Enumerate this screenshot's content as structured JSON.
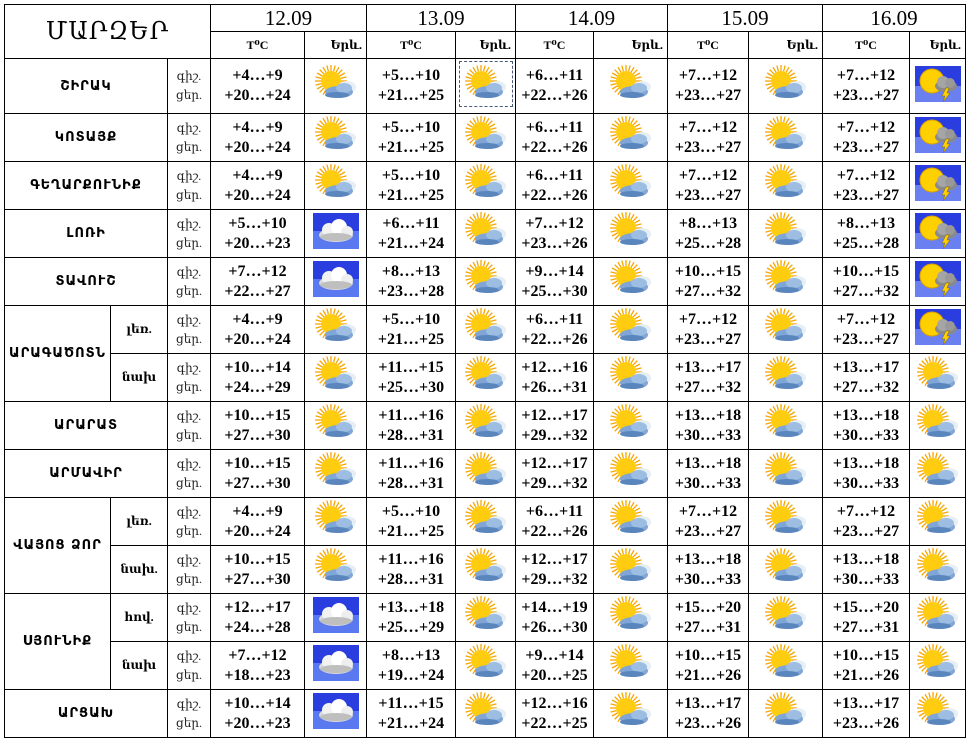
{
  "header": {
    "title": "ՄԱՐԶԵՐ",
    "dates": [
      "12.09",
      "13.09",
      "14.09",
      "15.09",
      "16.09"
    ],
    "temp_label": "T⁰C",
    "city_label": "Երև."
  },
  "labels": {
    "night": "գիշ.",
    "day": "ցեր."
  },
  "icon_types": {
    "pc": "partly-cloudy",
    "cl": "cloudy",
    "th": "thunderstorm"
  },
  "colors": {
    "sun": "#ffc400",
    "sky": "#2233dd",
    "cloud": "#7fa6d6",
    "border": "#000000"
  },
  "regions": [
    {
      "name": "ՇԻՐԱԿ",
      "rows": [
        {
          "sub": "",
          "days": [
            [
              "+4…+9",
              "+20…+24",
              "pc"
            ],
            [
              "+5…+10",
              "+21…+25",
              "pc"
            ],
            [
              "+6…+11",
              "+22…+26",
              "pc"
            ],
            [
              "+7…+12",
              "+23…+27",
              "pc"
            ],
            [
              "+7…+12",
              "+23…+27",
              "th"
            ]
          ]
        }
      ]
    },
    {
      "name": "ԿՈՏԱՅՔ",
      "rows": [
        {
          "sub": "",
          "days": [
            [
              "+4…+9",
              "+20…+24",
              "pc"
            ],
            [
              "+5…+10",
              "+21…+25",
              "pc"
            ],
            [
              "+6…+11",
              "+22…+26",
              "pc"
            ],
            [
              "+7…+12",
              "+23…+27",
              "pc"
            ],
            [
              "+7…+12",
              "+23…+27",
              "th"
            ]
          ]
        }
      ]
    },
    {
      "name": "ԳԵՂԱՐՔՈՒՆԻՔ",
      "rows": [
        {
          "sub": "",
          "days": [
            [
              "+4…+9",
              "+20…+24",
              "pc"
            ],
            [
              "+5…+10",
              "+21…+25",
              "pc"
            ],
            [
              "+6…+11",
              "+22…+26",
              "pc"
            ],
            [
              "+7…+12",
              "+23…+27",
              "pc"
            ],
            [
              "+7…+12",
              "+23…+27",
              "th"
            ]
          ]
        }
      ]
    },
    {
      "name": "ԼՈՌԻ",
      "rows": [
        {
          "sub": "",
          "days": [
            [
              "+5…+10",
              "+20…+23",
              "cl"
            ],
            [
              "+6…+11",
              "+21…+24",
              "pc"
            ],
            [
              "+7…+12",
              "+23…+26",
              "pc"
            ],
            [
              "+8…+13",
              "+25…+28",
              "pc"
            ],
            [
              "+8…+13",
              "+25…+28",
              "th"
            ]
          ]
        }
      ]
    },
    {
      "name": "ՏԱՎՈՒՇ",
      "rows": [
        {
          "sub": "",
          "days": [
            [
              "+7…+12",
              "+22…+27",
              "cl"
            ],
            [
              "+8…+13",
              "+23…+28",
              "pc"
            ],
            [
              "+9…+14",
              "+25…+30",
              "pc"
            ],
            [
              "+10…+15",
              "+27…+32",
              "pc"
            ],
            [
              "+10…+15",
              "+27…+32",
              "th"
            ]
          ]
        }
      ]
    },
    {
      "name": "ԱՐԱԳԱԾՈՏՆ",
      "rows": [
        {
          "sub": "լեռ.",
          "days": [
            [
              "+4…+9",
              "+20…+24",
              "pc"
            ],
            [
              "+5…+10",
              "+21…+25",
              "pc"
            ],
            [
              "+6…+11",
              "+22…+26",
              "pc"
            ],
            [
              "+7…+12",
              "+23…+27",
              "pc"
            ],
            [
              "+7…+12",
              "+23…+27",
              "th"
            ]
          ]
        },
        {
          "sub": "նախ",
          "days": [
            [
              "+10…+14",
              "+24…+29",
              "pc"
            ],
            [
              "+11…+15",
              "+25…+30",
              "pc"
            ],
            [
              "+12…+16",
              "+26…+31",
              "pc"
            ],
            [
              "+13…+17",
              "+27…+32",
              "pc"
            ],
            [
              "+13…+17",
              "+27…+32",
              "pc"
            ]
          ]
        }
      ]
    },
    {
      "name": "ԱՐԱՐԱՏ",
      "rows": [
        {
          "sub": "",
          "days": [
            [
              "+10…+15",
              "+27…+30",
              "pc"
            ],
            [
              "+11…+16",
              "+28…+31",
              "pc"
            ],
            [
              "+12…+17",
              "+29…+32",
              "pc"
            ],
            [
              "+13…+18",
              "+30…+33",
              "pc"
            ],
            [
              "+13…+18",
              "+30…+33",
              "pc"
            ]
          ]
        }
      ]
    },
    {
      "name": "ԱՐՄԱՎԻՐ",
      "rows": [
        {
          "sub": "",
          "days": [
            [
              "+10…+15",
              "+27…+30",
              "pc"
            ],
            [
              "+11…+16",
              "+28…+31",
              "pc"
            ],
            [
              "+12…+17",
              "+29…+32",
              "pc"
            ],
            [
              "+13…+18",
              "+30…+33",
              "pc"
            ],
            [
              "+13…+18",
              "+30…+33",
              "pc"
            ]
          ]
        }
      ]
    },
    {
      "name": "ՎԱՅՈՑ ՁՈՐ",
      "rows": [
        {
          "sub": "լեռ.",
          "days": [
            [
              "+4…+9",
              "+20…+24",
              "pc"
            ],
            [
              "+5…+10",
              "+21…+25",
              "pc"
            ],
            [
              "+6…+11",
              "+22…+26",
              "pc"
            ],
            [
              "+7…+12",
              "+23…+27",
              "pc"
            ],
            [
              "+7…+12",
              "+23…+27",
              "pc"
            ]
          ]
        },
        {
          "sub": "նախ.",
          "days": [
            [
              "+10…+15",
              "+27…+30",
              "pc"
            ],
            [
              "+11…+16",
              "+28…+31",
              "pc"
            ],
            [
              "+12…+17",
              "+29…+32",
              "pc"
            ],
            [
              "+13…+18",
              "+30…+33",
              "pc"
            ],
            [
              "+13…+18",
              "+30…+33",
              "pc"
            ]
          ]
        }
      ]
    },
    {
      "name": "ՍՅՈՒՆԻՔ",
      "rows": [
        {
          "sub": "հով.",
          "days": [
            [
              "+12…+17",
              "+24…+28",
              "cl"
            ],
            [
              "+13…+18",
              "+25…+29",
              "pc"
            ],
            [
              "+14…+19",
              "+26…+30",
              "pc"
            ],
            [
              "+15…+20",
              "+27…+31",
              "pc"
            ],
            [
              "+15…+20",
              "+27…+31",
              "pc"
            ]
          ]
        },
        {
          "sub": "նախ",
          "days": [
            [
              "+7…+12",
              "+18…+23",
              "cl"
            ],
            [
              "+8…+13",
              "+19…+24",
              "pc"
            ],
            [
              "+9…+14",
              "+20…+25",
              "pc"
            ],
            [
              "+10…+15",
              "+21…+26",
              "pc"
            ],
            [
              "+10…+15",
              "+21…+26",
              "pc"
            ]
          ]
        }
      ]
    },
    {
      "name": "ԱՐՑԱԽ",
      "rows": [
        {
          "sub": "",
          "days": [
            [
              "+10…+14",
              "+20…+23",
              "cl"
            ],
            [
              "+11…+15",
              "+21…+24",
              "pc"
            ],
            [
              "+12…+16",
              "+22…+25",
              "pc"
            ],
            [
              "+13…+17",
              "+23…+26",
              "pc"
            ],
            [
              "+13…+17",
              "+23…+26",
              "pc"
            ]
          ]
        }
      ]
    }
  ]
}
